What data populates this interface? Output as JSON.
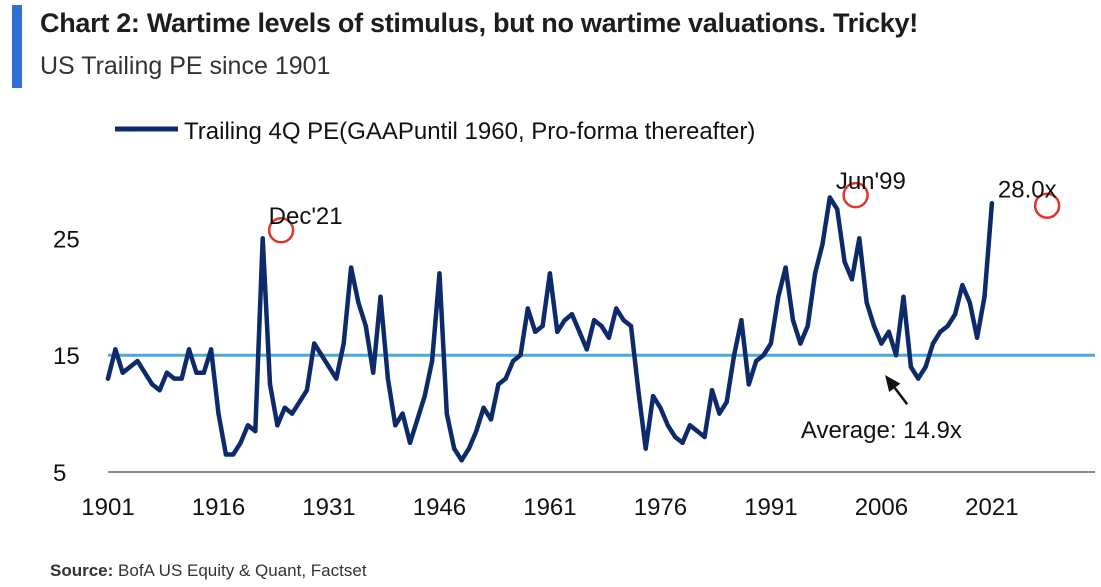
{
  "header": {
    "title": "Chart 2: Wartime levels of stimulus, but no wartime valuations. Tricky!",
    "subtitle": "US Trailing PE since 1901"
  },
  "footer": {
    "source_label": "Source:",
    "source_text": "BofA US Equity & Quant, Factset"
  },
  "colors": {
    "accent": "#2f6fd6",
    "series": "#0d2a6b",
    "average": "#4aa8dc",
    "marker": "#e0362a",
    "text": "#111111"
  },
  "chart_data": {
    "type": "line",
    "title": "",
    "xlabel": "",
    "ylabel": "",
    "xlim": [
      1901,
      2035
    ],
    "ylim": [
      5,
      30
    ],
    "x_ticks": [
      "1901",
      "1916",
      "1931",
      "1946",
      "1961",
      "1976",
      "1991",
      "2006",
      "2021"
    ],
    "y_ticks": [
      "5",
      "15",
      "25"
    ],
    "grid": false,
    "legend_position": "top-left",
    "series": [
      {
        "name": "Trailing 4Q PE(GAAPuntil  1960, Pro-forma thereafter)",
        "x": [
          1901,
          1902,
          1903,
          1904,
          1905,
          1906,
          1907,
          1908,
          1909,
          1910,
          1911,
          1912,
          1913,
          1914,
          1915,
          1916,
          1917,
          1918,
          1919,
          1920,
          1921,
          1922,
          1923,
          1924,
          1925,
          1926,
          1927,
          1928,
          1929,
          1930,
          1931,
          1932,
          1933,
          1934,
          1935,
          1936,
          1937,
          1938,
          1939,
          1940,
          1941,
          1942,
          1943,
          1944,
          1945,
          1946,
          1947,
          1948,
          1949,
          1950,
          1951,
          1952,
          1953,
          1954,
          1955,
          1956,
          1957,
          1958,
          1959,
          1960,
          1961,
          1962,
          1963,
          1964,
          1965,
          1966,
          1967,
          1968,
          1969,
          1970,
          1971,
          1972,
          1973,
          1974,
          1975,
          1976,
          1977,
          1978,
          1979,
          1980,
          1981,
          1982,
          1983,
          1984,
          1985,
          1986,
          1987,
          1988,
          1989,
          1990,
          1991,
          1992,
          1993,
          1994,
          1995,
          1996,
          1997,
          1998,
          1999,
          2000,
          2001,
          2002,
          2003,
          2004,
          2005,
          2006,
          2007,
          2008,
          2009,
          2010,
          2011,
          2012,
          2013,
          2014,
          2015,
          2016,
          2017,
          2018,
          2019,
          2020,
          2021
        ],
        "values": [
          13.0,
          15.5,
          13.5,
          14.0,
          14.5,
          13.5,
          12.5,
          12.0,
          13.5,
          13.0,
          13.0,
          15.5,
          13.5,
          13.5,
          15.5,
          10.0,
          6.5,
          6.5,
          7.5,
          9.0,
          8.5,
          25.0,
          12.5,
          9.0,
          10.5,
          10.0,
          11.0,
          12.0,
          16.0,
          15.0,
          14.0,
          13.0,
          16.0,
          22.5,
          19.5,
          17.5,
          13.5,
          20.0,
          13.0,
          9.0,
          10.0,
          7.5,
          9.5,
          11.5,
          14.5,
          22.0,
          10.0,
          7.0,
          6.0,
          7.0,
          8.5,
          10.5,
          9.5,
          12.5,
          13.0,
          14.5,
          15.0,
          19.0,
          17.0,
          17.5,
          22.0,
          17.0,
          18.0,
          18.5,
          17.0,
          15.5,
          18.0,
          17.5,
          16.5,
          19.0,
          18.0,
          17.5,
          12.0,
          7.0,
          11.5,
          10.5,
          9.0,
          8.0,
          7.5,
          9.0,
          8.5,
          8.0,
          12.0,
          10.0,
          11.0,
          15.0,
          18.0,
          12.5,
          14.5,
          15.0,
          16.0,
          20.0,
          22.5,
          18.0,
          16.0,
          17.5,
          22.0,
          24.5,
          28.5,
          27.5,
          23.0,
          21.5,
          25.0,
          19.5,
          17.5,
          16.0,
          17.0,
          15.0,
          20.0,
          14.0,
          13.0,
          14.0,
          16.0,
          17.0,
          17.5,
          18.5,
          21.0,
          19.5,
          16.5,
          20.0,
          28.0
        ],
        "color": "#0d2a6b"
      }
    ],
    "reference_line": {
      "value": 15,
      "color": "#4aa8dc",
      "label": "Average: 14.9x"
    },
    "annotations": [
      {
        "text": "Dec'21",
        "x": 1922,
        "y": 25.7
      },
      {
        "text": "Jun'99",
        "x": 1999,
        "y": 28.7
      },
      {
        "text": "28.0x",
        "x": 2021,
        "y": 28.0
      }
    ],
    "circle_markers": [
      {
        "x": 1924.5,
        "y": 25.7
      },
      {
        "x": 2002.5,
        "y": 28.7
      },
      {
        "x": 2028.5,
        "y": 27.8
      }
    ],
    "arrow": {
      "from": {
        "x": 2009.5,
        "y": 10.8
      },
      "to": {
        "x": 2006.5,
        "y": 13.3
      }
    }
  }
}
